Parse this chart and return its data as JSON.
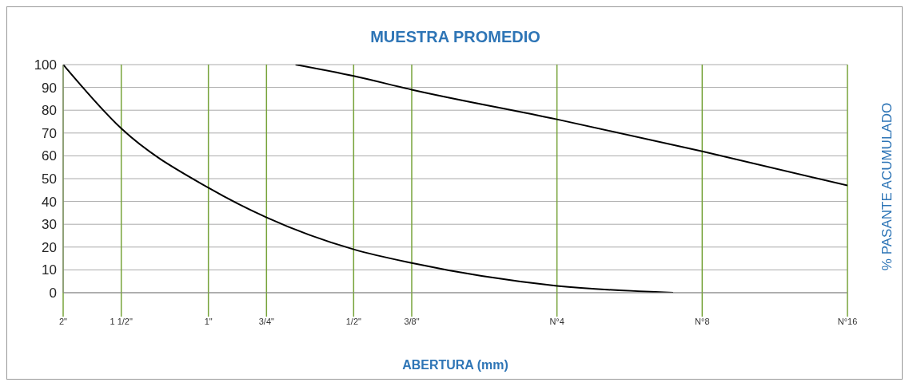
{
  "chart_data": {
    "type": "line",
    "title": "MUESTRA PROMEDIO",
    "xlabel": "ABERTURA (mm)",
    "ylabel": "% PASANTE ACUMULADO",
    "grid": true,
    "legend": false,
    "marker": "none",
    "line_style": "solid",
    "categories": [
      "2\"",
      null,
      "1 1/2\"",
      null,
      null,
      "1\"",
      null,
      "3/4\"",
      null,
      null,
      "1/2\"",
      null,
      "3/8\"",
      null,
      null,
      null,
      null,
      "N°4",
      null,
      null,
      null,
      null,
      "N°8",
      null,
      null,
      null,
      null,
      "N°16"
    ],
    "ylim": [
      0,
      100
    ],
    "yticks": [
      0,
      10,
      20,
      30,
      40,
      50,
      60,
      70,
      80,
      90,
      100
    ],
    "series": [
      {
        "color": "#000000",
        "values": [
          100,
          null,
          72,
          null,
          null,
          46,
          null,
          33,
          null,
          null,
          19,
          null,
          13,
          null,
          null,
          null,
          null,
          3,
          null,
          null,
          null,
          0,
          null,
          null,
          null,
          null,
          null,
          null
        ]
      },
      {
        "color": "#000000",
        "values": [
          null,
          null,
          null,
          null,
          null,
          null,
          null,
          null,
          100,
          null,
          95,
          null,
          89,
          null,
          null,
          null,
          null,
          76,
          null,
          null,
          null,
          null,
          62,
          null,
          null,
          null,
          null,
          47
        ]
      }
    ]
  }
}
